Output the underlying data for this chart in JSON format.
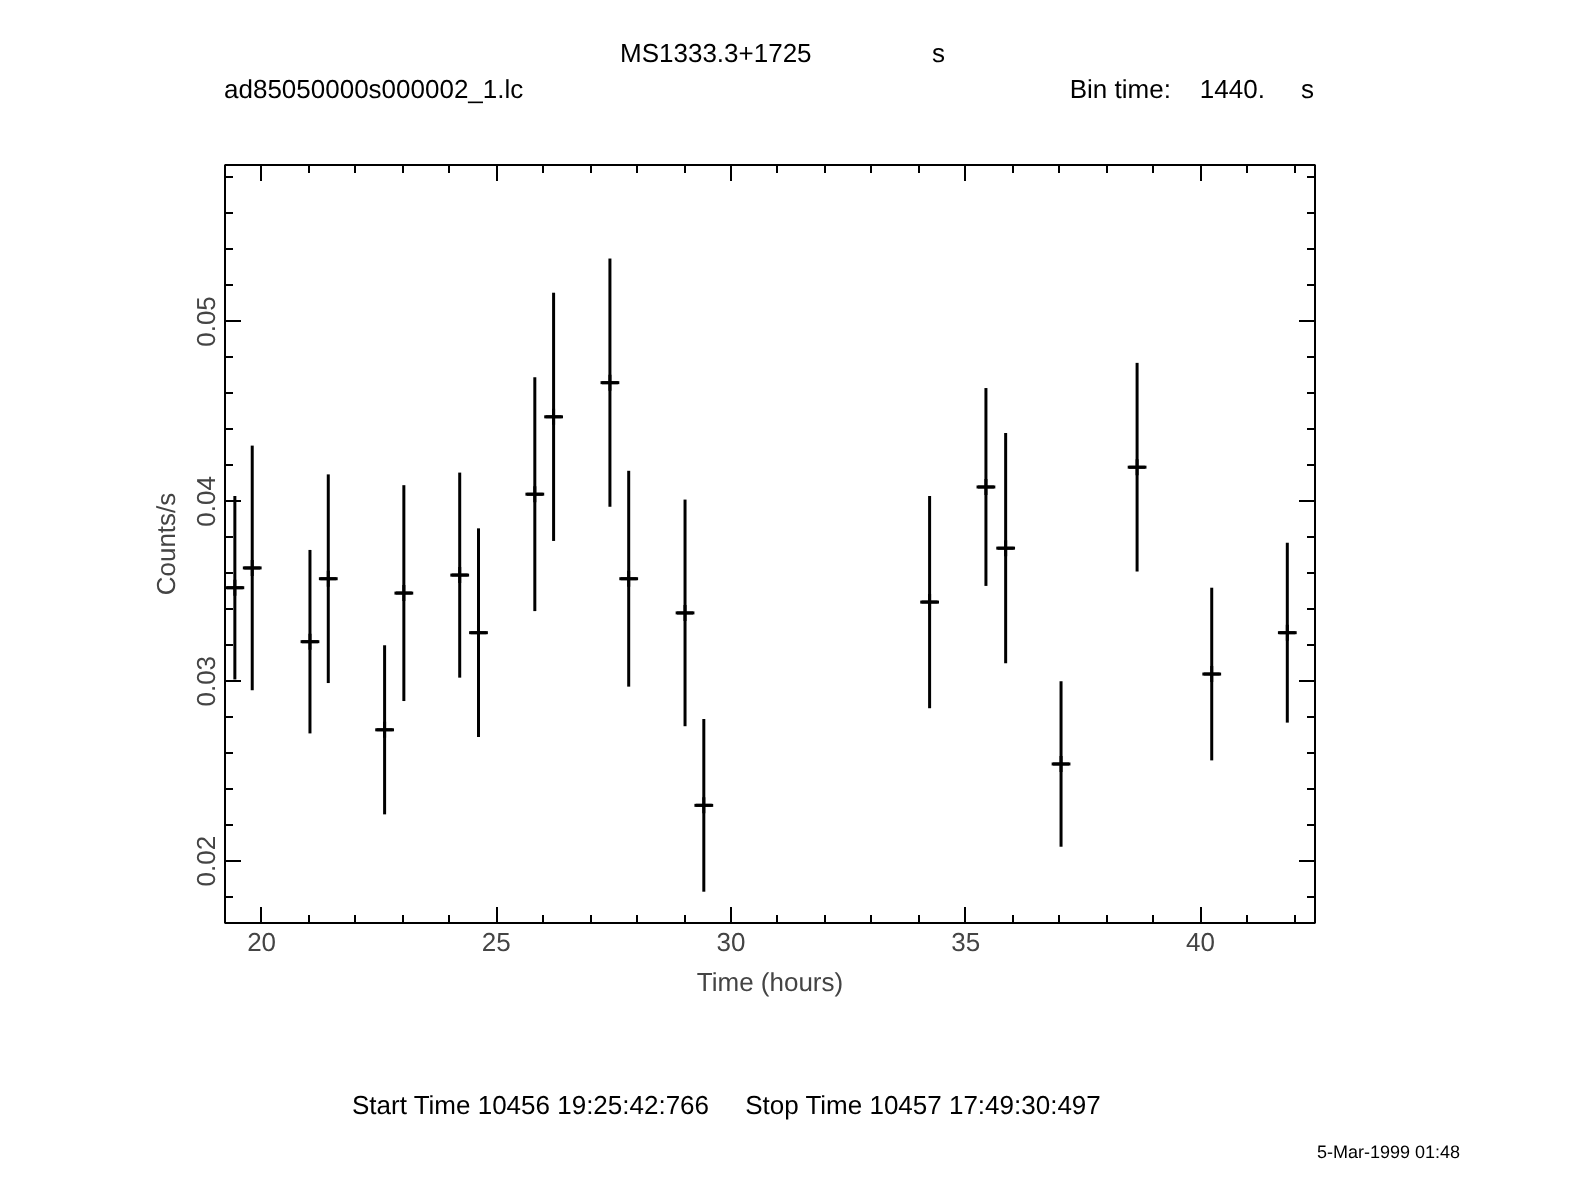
{
  "chart_data": {
    "type": "scatter",
    "title": "MS1333.3+1725",
    "subtitle": "ad85050000s000002_1.lc",
    "xlabel": "Time (hours)",
    "ylabel": "Counts/s",
    "annotations": [
      "s",
      "Bin time:    1440.     s",
      "Start Time 10456 19:25:42:766     Stop Time 10457 17:49:30:497",
      "5-Mar-1999 01:48"
    ],
    "x": [
      19.43,
      19.8,
      21.03,
      21.42,
      22.62,
      23.03,
      24.22,
      24.62,
      25.82,
      26.22,
      27.42,
      27.82,
      29.02,
      29.42,
      34.23,
      35.43,
      35.85,
      37.03,
      38.65,
      40.24,
      41.85
    ],
    "series": [
      {
        "color": "#000000",
        "values": [
          0.0352,
          0.0363,
          0.0322,
          0.0357,
          0.0273,
          0.0349,
          0.0359,
          0.0327,
          0.0404,
          0.0447,
          0.0466,
          0.0357,
          0.0338,
          0.0231,
          0.0344,
          0.0408,
          0.0374,
          0.0254,
          0.0419,
          0.0304,
          0.0327
        ],
        "errors": [
          0.0051,
          0.0068,
          0.0051,
          0.0058,
          0.0047,
          0.006,
          0.0057,
          0.0058,
          0.0065,
          0.0069,
          0.0069,
          0.006,
          0.0063,
          0.0048,
          0.0059,
          0.0055,
          0.0064,
          0.0046,
          0.0058,
          0.0048,
          0.005
        ],
        "xerrors": [
          0.2,
          0.2,
          0.2,
          0.2,
          0.2,
          0.2,
          0.2,
          0.2,
          0.2,
          0.2,
          0.2,
          0.2,
          0.2,
          0.2,
          0.2,
          0.2,
          0.2,
          0.2,
          0.2,
          0.2,
          0.2
        ]
      }
    ],
    "xlim": [
      19.22,
      42.44
    ],
    "ylim": [
      0.01656,
      0.0587
    ],
    "xticks": [
      20,
      25,
      30,
      35,
      40
    ],
    "yticks": [
      0.02,
      0.03,
      0.04,
      0.05
    ],
    "grid": false,
    "marker": "cross"
  }
}
